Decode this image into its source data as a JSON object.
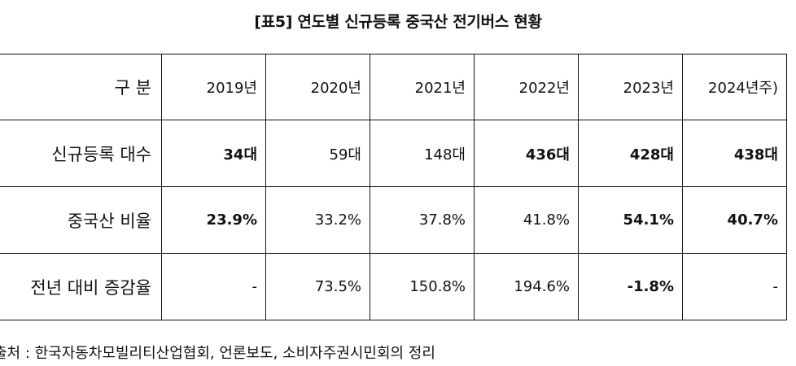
{
  "title": "[표5] 연도별 신규등록 중국산 전기버스 현황",
  "table": {
    "header": {
      "label": "구 분",
      "years": [
        "2019년",
        "2020년",
        "2021년",
        "2022년",
        "2023년",
        "2024년주)"
      ]
    },
    "rows": [
      {
        "label": "신규등록 대수",
        "cells": [
          "34대",
          "59대",
          "148대",
          "436대",
          "428대",
          "438대"
        ],
        "bold": [
          true,
          false,
          false,
          true,
          true,
          true
        ]
      },
      {
        "label": "중국산 비율",
        "cells": [
          "23.9%",
          "33.2%",
          "37.8%",
          "41.8%",
          "54.1%",
          "40.7%"
        ],
        "bold": [
          true,
          false,
          false,
          false,
          true,
          true
        ]
      },
      {
        "label": "전년 대비 증감율",
        "cells": [
          "-",
          "73.5%",
          "150.8%",
          "194.6%",
          "-1.8%",
          "-"
        ],
        "bold": [
          false,
          false,
          false,
          false,
          true,
          false
        ]
      }
    ]
  },
  "source": "출처 : 한국자동차모빌리티산업협회, 언론보도, 소비자주권시민회의 정리"
}
